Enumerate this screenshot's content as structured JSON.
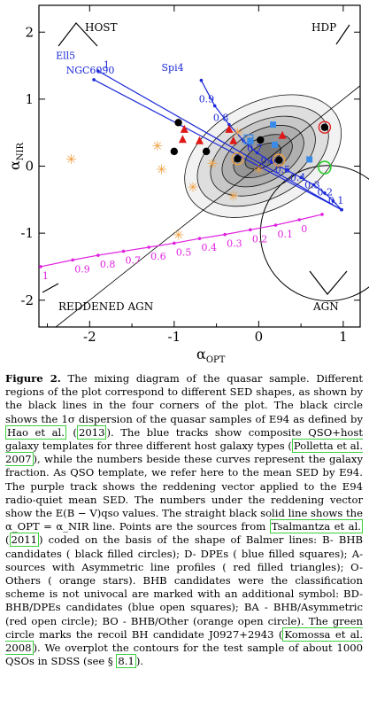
{
  "chart_data": {
    "type": "scatter",
    "x_axis": {
      "label": "α_OPT",
      "range": [
        -2.6,
        1.2
      ],
      "ticks": [
        "-2",
        "-1",
        "0",
        "1"
      ]
    },
    "y_axis": {
      "label": "α_NIR",
      "range": [
        -2.4,
        2.4
      ],
      "ticks": [
        "2",
        "1",
        "0",
        "-1",
        "-2"
      ]
    },
    "corner_labels": {
      "tl": "HOST",
      "tr": "HDP",
      "bl": "REDDENED AGN",
      "br": "AGN"
    },
    "host_tracks": [
      {
        "name": "Ell5",
        "x": [
          -1.9,
          0.98
        ],
        "y": [
          1.42,
          -0.65
        ],
        "end_labels": [
          "1"
        ]
      },
      {
        "name": "NGC6090",
        "x": [
          -1.95,
          0.98
        ],
        "y": [
          1.29,
          -0.65
        ]
      },
      {
        "name": "Spi4",
        "x": [
          -0.68,
          -0.52,
          -0.35,
          -0.18,
          -0.02,
          0.15,
          0.33,
          0.5,
          0.65,
          0.78,
          0.88,
          0.98
        ],
        "y": [
          1.28,
          0.9,
          0.62,
          0.38,
          0.2,
          0.06,
          -0.06,
          -0.17,
          -0.28,
          -0.4,
          -0.52,
          -0.65
        ],
        "labels": [
          "0.9",
          "0.8",
          "0.7",
          "0.6",
          "0.5",
          "0.4",
          "0.3",
          "0.2",
          "0.1"
        ]
      }
    ],
    "reddening_vector": {
      "x": [
        -2.58,
        -2.2,
        -1.9,
        -1.6,
        -1.3,
        -1.0,
        -0.7,
        -0.4,
        -0.1,
        0.2,
        0.48,
        0.75
      ],
      "y": [
        -1.5,
        -1.4,
        -1.33,
        -1.27,
        -1.21,
        -1.15,
        -1.08,
        -1.02,
        -0.95,
        -0.88,
        -0.8,
        -0.72
      ],
      "labels": [
        "1",
        "0.9",
        "0.8",
        "0.7",
        "0.6",
        "0.5",
        "0.4",
        "0.3",
        "0.2",
        "0.1",
        "0"
      ]
    },
    "bhb_candidates": [
      {
        "x": -0.95,
        "y": 0.65
      },
      {
        "x": -1.0,
        "y": 0.22
      },
      {
        "x": -0.62,
        "y": 0.22
      },
      {
        "x": -0.25,
        "y": 0.11
      },
      {
        "x": 0.02,
        "y": 0.39
      },
      {
        "x": 0.24,
        "y": 0.09
      },
      {
        "x": 0.78,
        "y": 0.58
      }
    ],
    "dpes": [
      {
        "x": -0.1,
        "y": 0.38
      },
      {
        "x": 0.17,
        "y": 0.62
      },
      {
        "x": 0.19,
        "y": 0.32
      },
      {
        "x": 0.6,
        "y": 0.1
      }
    ],
    "asymmetric": [
      {
        "x": -0.88,
        "y": 0.55
      },
      {
        "x": -0.9,
        "y": 0.4
      },
      {
        "x": -0.7,
        "y": 0.38
      },
      {
        "x": -0.35,
        "y": 0.55
      },
      {
        "x": -0.3,
        "y": 0.38
      },
      {
        "x": 0.28,
        "y": 0.46
      }
    ],
    "others": [
      {
        "x": -2.22,
        "y": 0.1
      },
      {
        "x": -1.2,
        "y": 0.3
      },
      {
        "x": -1.15,
        "y": -0.05
      },
      {
        "x": -0.78,
        "y": -0.32
      },
      {
        "x": -0.95,
        "y": -1.03
      },
      {
        "x": -0.55,
        "y": 0.03
      },
      {
        "x": -0.3,
        "y": -0.45
      },
      {
        "x": -0.25,
        "y": 0.5
      },
      {
        "x": 0.0,
        "y": -0.05
      }
    ],
    "bhb_open_markers": [
      {
        "kind": "BD",
        "x": -0.12,
        "y": 0.4
      },
      {
        "kind": "BA",
        "x": 0.78,
        "y": 0.58
      },
      {
        "kind": "BO",
        "x": 0.24,
        "y": 0.09
      },
      {
        "kind": "BO",
        "x": -0.25,
        "y": 0.11
      }
    ],
    "green_circle": {
      "x": 0.78,
      "y": -0.02
    },
    "hao_circle": {
      "x": 0.82,
      "y": -1.0,
      "r": 0.8
    },
    "grid": false
  },
  "caption": {
    "label": "Figure 2.",
    "p1": " The mixing diagram of the quasar sample. Different regions of the plot correspond to different SED shapes, as shown by the black lines in the four corners of the plot. The black circle shows the 1σ dispersion of the quasar samples of E94 as defined by ",
    "ref1": "Hao et al.",
    "p2": " (",
    "ref2": "2013",
    "p3": "). The blue tracks show composite QSO+host galaxy templates for three different host galaxy types (",
    "ref3": "Polletta et al. 2007",
    "p4": "), while the numbers beside these curves represent the galaxy fraction. As QSO template, we refer here to the mean SED by E94. The purple track shows the reddening vector applied to the E94 radio-quiet mean SED. The numbers under the reddening vector show the E(B − V)qso values. The straight black solid line shows the α_OPT = α_NIR line. Points are the sources from ",
    "ref4": "Tsalmantza et al.",
    "p5": " (",
    "ref5": "2011",
    "p6": ") coded on the basis of the shape of Balmer lines: B- BHB candidates ( black filled circles); D- DPEs ( blue filled squares); A- sources with Asymmetric line profiles ( red filled triangles); O- Others ( orange stars). BHB candidates were the classification scheme is not univocal are marked with an additional symbol: BD- BHB/DPEs candidates (blue open squares); BA - BHB/Asymmetric (red open circle); BO - BHB/Other (orange open circle). The green circle marks the recoil BH candidate J0927+2943 (",
    "ref6": "Komossa et al. 2008",
    "p7": "). We overplot the contours for the test sample of about 1000 QSOs in SDSS (see § ",
    "ref7": "8.1",
    "p8": ")."
  }
}
